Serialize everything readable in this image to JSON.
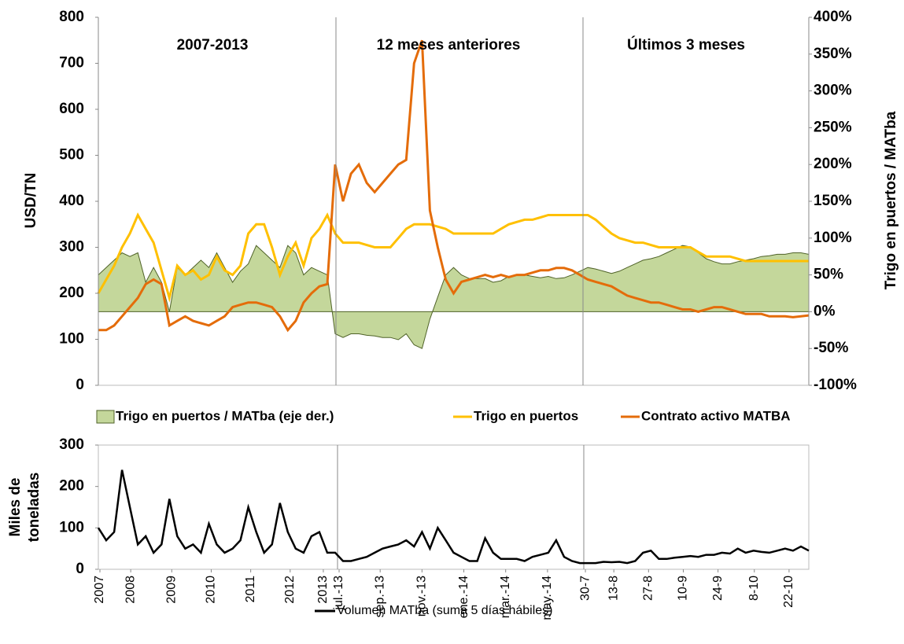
{
  "chart_data": [
    {
      "type": "line",
      "y_label": "USD/TN",
      "y2_label": "Trigo en puertos /  MATba",
      "annotations": [
        "2007-2013",
        "12 meses anteriores",
        "Últimos 3 meses"
      ],
      "xlim": [
        0,
        90
      ],
      "ylim": [
        0,
        800
      ],
      "yticks": [
        0,
        100,
        200,
        300,
        400,
        500,
        600,
        700,
        800
      ],
      "y2lim": [
        -100,
        400
      ],
      "y2ticks": [
        {
          "value": -100,
          "label": "-100%"
        },
        {
          "value": -50,
          "label": "-50%"
        },
        {
          "value": 0,
          "label": "0%"
        },
        {
          "value": 50,
          "label": "50%"
        },
        {
          "value": 100,
          "label": "100%"
        },
        {
          "value": 150,
          "label": "150%"
        },
        {
          "value": 200,
          "label": "200%"
        },
        {
          "value": 250,
          "label": "250%"
        },
        {
          "value": 300,
          "label": "300%"
        },
        {
          "value": 350,
          "label": "350%"
        },
        {
          "value": 400,
          "label": "400%"
        }
      ],
      "series": [
        {
          "name": "Trigo en  puertos / MATba (eje der.)",
          "color": "#c4d79b",
          "axis": "y2",
          "area": true,
          "values": [
            50,
            60,
            70,
            80,
            75,
            80,
            40,
            60,
            40,
            0,
            60,
            50,
            60,
            70,
            60,
            80,
            60,
            40,
            55,
            65,
            90,
            80,
            70,
            60,
            90,
            80,
            50,
            60,
            55,
            50,
            -30,
            -35,
            -30,
            -30,
            -32,
            -33,
            -35,
            -35,
            -38,
            -30,
            -45,
            -50,
            -10,
            20,
            50,
            60,
            50,
            45,
            45,
            45,
            40,
            42,
            48,
            50,
            50,
            48,
            46,
            48,
            45,
            46,
            50,
            55,
            60,
            58,
            55,
            52,
            55,
            60,
            65,
            70,
            72,
            75,
            80,
            85,
            90,
            88,
            80,
            72,
            68,
            65,
            65,
            68,
            70,
            72,
            75,
            76,
            78,
            78,
            80,
            80,
            78
          ]
        },
        {
          "name": "Trigo en puertos",
          "color": "#ffc000",
          "values": [
            200,
            230,
            260,
            300,
            330,
            370,
            340,
            310,
            250,
            190,
            260,
            240,
            250,
            230,
            240,
            280,
            250,
            240,
            260,
            330,
            350,
            350,
            300,
            240,
            280,
            310,
            260,
            320,
            340,
            370,
            330,
            310,
            310,
            310,
            305,
            300,
            300,
            300,
            320,
            340,
            350,
            350,
            350,
            345,
            340,
            330,
            330,
            330,
            330,
            330,
            330,
            340,
            350,
            355,
            360,
            360,
            365,
            370,
            370,
            370,
            370,
            370,
            370,
            360,
            345,
            330,
            320,
            315,
            310,
            310,
            305,
            300,
            300,
            300,
            300,
            300,
            290,
            280,
            280,
            280,
            280,
            275,
            270,
            270,
            270,
            270,
            270,
            270,
            270,
            270,
            270
          ]
        },
        {
          "name": "Contrato activo MATBA",
          "color": "#e46c0a",
          "values": [
            120,
            120,
            130,
            150,
            170,
            190,
            220,
            230,
            220,
            130,
            140,
            150,
            140,
            135,
            130,
            140,
            150,
            170,
            175,
            180,
            180,
            175,
            170,
            150,
            120,
            140,
            180,
            200,
            215,
            220,
            480,
            400,
            460,
            480,
            440,
            420,
            440,
            460,
            480,
            490,
            700,
            750,
            380,
            300,
            230,
            200,
            225,
            230,
            235,
            240,
            235,
            240,
            235,
            240,
            240,
            245,
            250,
            250,
            255,
            255,
            250,
            240,
            230,
            225,
            220,
            215,
            205,
            195,
            190,
            185,
            180,
            180,
            175,
            170,
            165,
            165,
            160,
            165,
            170,
            170,
            165,
            160,
            155,
            155,
            155,
            150,
            150,
            150,
            148,
            150,
            152
          ]
        }
      ]
    },
    {
      "type": "line",
      "y_label": "Miles de toneladas",
      "xlim": [
        0,
        90
      ],
      "xticks": [
        {
          "value": 0.2,
          "label": "2007"
        },
        {
          "value": 4.1,
          "label": "2008"
        },
        {
          "value": 9.3,
          "label": "2009"
        },
        {
          "value": 14.3,
          "label": "2010"
        },
        {
          "value": 19.3,
          "label": "2011"
        },
        {
          "value": 24.3,
          "label": "2012"
        },
        {
          "value": 28.5,
          "label": "2013"
        },
        {
          "value": 30.5,
          "label": "jul.-13"
        },
        {
          "value": 35.7,
          "label": "sep.-13"
        },
        {
          "value": 41,
          "label": "nov.-13"
        },
        {
          "value": 46.3,
          "label": "ene.-14"
        },
        {
          "value": 51.6,
          "label": "mar.-14"
        },
        {
          "value": 56.9,
          "label": "may.-14"
        },
        {
          "value": 61.7,
          "label": "30-7"
        },
        {
          "value": 65.3,
          "label": "13-8"
        },
        {
          "value": 69.7,
          "label": "27-8"
        },
        {
          "value": 74.1,
          "label": "10-9"
        },
        {
          "value": 78.5,
          "label": "24-9"
        },
        {
          "value": 83.1,
          "label": "8-10"
        },
        {
          "value": 87.5,
          "label": "22-10"
        }
      ],
      "ylim": [
        0,
        300
      ],
      "yticks": [
        0,
        100,
        200,
        300
      ],
      "series": [
        {
          "name": "Volumen MATba (suma 5 días hábiles)",
          "color": "#000000",
          "values": [
            100,
            70,
            90,
            240,
            150,
            60,
            80,
            40,
            60,
            170,
            80,
            50,
            60,
            40,
            110,
            60,
            40,
            50,
            70,
            150,
            90,
            40,
            60,
            160,
            90,
            50,
            40,
            80,
            90,
            40,
            40,
            20,
            20,
            25,
            30,
            40,
            50,
            55,
            60,
            70,
            55,
            90,
            50,
            100,
            70,
            40,
            30,
            20,
            20,
            75,
            40,
            25,
            25,
            25,
            20,
            30,
            35,
            40,
            70,
            30,
            20,
            15,
            15,
            15,
            18,
            17,
            18,
            15,
            20,
            40,
            45,
            25,
            25,
            28,
            30,
            32,
            30,
            35,
            35,
            40,
            38,
            50,
            40,
            45,
            42,
            40,
            45,
            50,
            45,
            55,
            45
          ]
        }
      ]
    }
  ]
}
